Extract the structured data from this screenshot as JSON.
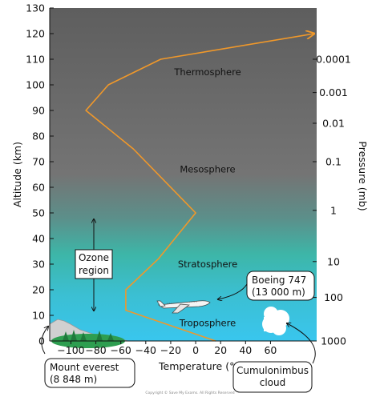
{
  "chart_data": {
    "type": "line",
    "x": [
      16,
      -56,
      -56,
      -30,
      0,
      -50,
      -88,
      -70,
      -28,
      95
    ],
    "y": [
      0,
      12,
      20,
      32,
      50,
      75,
      90,
      100,
      110,
      120
    ],
    "xlabel": "Temperature (°C)",
    "ylabel": "Altitude (km)",
    "y2label": "Pressure (mb)",
    "xlim": [
      -117,
      97
    ],
    "ylim": [
      0,
      130
    ],
    "xticks": [
      "−100",
      "−80",
      "−60",
      "−40",
      "−20",
      "0",
      "20",
      "40",
      "60"
    ],
    "yticks": [
      "0",
      "10",
      "20",
      "30",
      "40",
      "50",
      "60",
      "70",
      "80",
      "90",
      "100",
      "110",
      "120",
      "130"
    ],
    "pressure_ticks": [
      {
        "label": "0.0001",
        "altitude": 110
      },
      {
        "label": "0.001",
        "altitude": 97
      },
      {
        "label": "0.01",
        "altitude": 85
      },
      {
        "label": "0.1",
        "altitude": 70
      },
      {
        "label": "1",
        "altitude": 51
      },
      {
        "label": "10",
        "altitude": 31
      },
      {
        "label": "100",
        "altitude": 17
      },
      {
        "label": "1000",
        "altitude": 0
      }
    ],
    "layers": [
      {
        "name": "Thermosphere",
        "altitude": 105
      },
      {
        "name": "Mesosphere",
        "altitude": 67
      },
      {
        "name": "Stratosphere",
        "altitude": 30
      },
      {
        "name": "Troposphere",
        "altitude": 7
      }
    ],
    "ozone_label": [
      "Ozone",
      "region"
    ],
    "ozone_range": [
      10,
      50
    ],
    "callouts": {
      "everest": [
        "Mount everest",
        "(8 848 m)"
      ],
      "boeing": [
        "Boeing 747",
        "(13 000 m)"
      ],
      "cloud": [
        "Cumulonimbus",
        "cloud"
      ]
    },
    "grid": false,
    "legend": "none",
    "colors": {
      "line": "#f0982a",
      "upper_atmosphere": "#6b6b6b",
      "ozone_band": "#3ab7a9",
      "lower_atmosphere": "#37c4e6",
      "mountain": "#c9c9c9",
      "trees": "#2e9e50"
    }
  },
  "footer": "Copyright © Save My Exams. All Rights Reserved"
}
